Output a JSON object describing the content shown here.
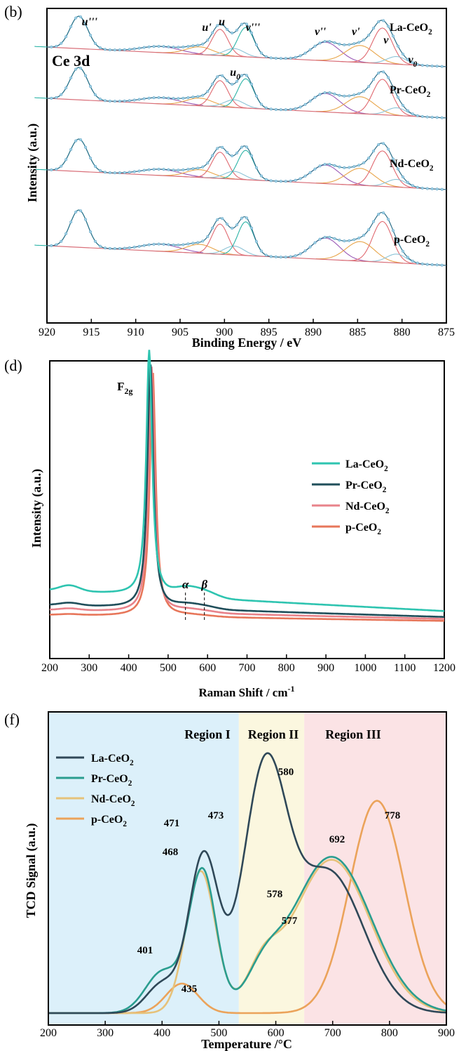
{
  "chart_data": [
    {
      "type": "line",
      "panel_label": "(b)",
      "spectrum_label": "Ce 3d",
      "xlabel": "Binding Energy / eV",
      "ylabel": "Intensity (a.u.)",
      "x_reversed": true,
      "xlim": [
        920,
        875
      ],
      "xticks": [
        "920",
        "915",
        "910",
        "905",
        "900",
        "895",
        "890",
        "885",
        "880",
        "875"
      ],
      "series": [
        {
          "name": "La-CeO2",
          "label_text": "La-CeO",
          "label_sub": "2",
          "offset": 3.0
        },
        {
          "name": "Pr-CeO2",
          "label_text": "Pr-CeO",
          "label_sub": "2",
          "offset": 2.0
        },
        {
          "name": "Nd-CeO2",
          "label_text": "Nd-CeO",
          "label_sub": "2",
          "offset": 1.0
        },
        {
          "name": "p-CeO2",
          "label_text": "p-CeO",
          "label_sub": "2",
          "offset": 0.0
        }
      ],
      "peaks": [
        {
          "x": 916.4,
          "h": 0.42,
          "w": 1.0
        },
        {
          "x": 907.2,
          "h": 0.08,
          "w": 2.2
        },
        {
          "x": 902.8,
          "h": 0.1,
          "w": 1.5
        },
        {
          "x": 900.5,
          "h": 0.34,
          "w": 0.9
        },
        {
          "x": 898.9,
          "h": 0.1,
          "w": 1.1
        },
        {
          "x": 897.6,
          "h": 0.38,
          "w": 0.9
        },
        {
          "x": 888.6,
          "h": 0.24,
          "w": 1.6
        },
        {
          "x": 884.7,
          "h": 0.22,
          "w": 1.6
        },
        {
          "x": 882.2,
          "h": 0.46,
          "w": 1.1
        },
        {
          "x": 880.6,
          "h": 0.1,
          "w": 1.1
        }
      ],
      "peak_labels": [
        {
          "x": 915.2,
          "text": "u'''"
        },
        {
          "x": 902.0,
          "text": "u'"
        },
        {
          "x": 900.3,
          "text": "u"
        },
        {
          "x": 898.8,
          "text": "u",
          "sub": "0"
        },
        {
          "x": 896.8,
          "text": "v'''"
        },
        {
          "x": 889.2,
          "text": "v''"
        },
        {
          "x": 885.2,
          "text": "v'"
        },
        {
          "x": 881.8,
          "text": "v"
        },
        {
          "x": 878.8,
          "text": "v",
          "sub": "0"
        }
      ],
      "component_colors": [
        "#2bb3a6",
        "#9b59b6",
        "#e8a54a",
        "#e0686f",
        "#8cc3d6"
      ]
    },
    {
      "type": "line",
      "panel_label": "(d)",
      "xlabel": "Raman Shift / cm-1",
      "xlabel_main": "Raman Shift / cm",
      "xlabel_sup": "-1",
      "ylabel": "Intensity (a.u.)",
      "xlim": [
        200,
        1200
      ],
      "xticks": [
        "200",
        "300",
        "400",
        "500",
        "600",
        "700",
        "800",
        "900",
        "1000",
        "1100",
        "1200"
      ],
      "peak_label": {
        "text": "F",
        "sub": "2g",
        "x": 456
      },
      "annotations": [
        {
          "text": "α",
          "x": 544
        },
        {
          "text": "β",
          "x": 592
        }
      ],
      "series": [
        {
          "name": "La-CeO2",
          "label_text": "La-CeO",
          "label_sub": "2",
          "color": "#2ec4b0",
          "peak_x": 452,
          "peak_h": 1.0,
          "baseline": 0.14,
          "shoulder": 0.13
        },
        {
          "name": "Pr-CeO2",
          "label_text": "Pr-CeO",
          "label_sub": "2",
          "color": "#1f4e5a",
          "peak_x": 455,
          "peak_h": 1.0,
          "baseline": 0.08,
          "shoulder": 0.06
        },
        {
          "name": "Nd-CeO2",
          "label_text": "Nd-CeO",
          "label_sub": "2",
          "color": "#e8828a",
          "peak_x": 458,
          "peak_h": 1.0,
          "baseline": 0.06,
          "shoulder": 0.04
        },
        {
          "name": "p-CeO2",
          "label_text": "p-CeO",
          "label_sub": "2",
          "color": "#e7765a",
          "peak_x": 461,
          "peak_h": 1.0,
          "baseline": 0.04,
          "shoulder": 0.02
        }
      ]
    },
    {
      "type": "line",
      "panel_label": "(f)",
      "xlabel": "Temperature /°C",
      "ylabel": "TCD Signal (a.u.)",
      "xlim": [
        200,
        900
      ],
      "xticks": [
        "200",
        "300",
        "400",
        "500",
        "600",
        "700",
        "800",
        "900"
      ],
      "regions": [
        {
          "label": "Region I",
          "from": 200,
          "to": 535,
          "color": "#dcf0fa"
        },
        {
          "label": "Region II",
          "from": 535,
          "to": 650,
          "color": "#fbf7df"
        },
        {
          "label": "Region III",
          "from": 650,
          "to": 900,
          "color": "#fbe3e5"
        }
      ],
      "series": [
        {
          "name": "La-CeO2",
          "label_text": "La-CeO",
          "label_sub": "2",
          "color": "#2f4858",
          "peaks": [
            {
              "x": 401,
              "h": 0.1,
              "w": 28
            },
            {
              "x": 473,
              "h": 0.53,
              "w": 26
            },
            {
              "x": 580,
              "h": 0.78,
              "w": 38
            },
            {
              "x": 692,
              "h": 0.48,
              "w": 62
            }
          ]
        },
        {
          "name": "Pr-CeO2",
          "label_text": "Pr-CeO",
          "label_sub": "2",
          "color": "#2a9d8f",
          "peaks": [
            {
              "x": 401,
              "h": 0.14,
              "w": 30
            },
            {
              "x": 471,
              "h": 0.48,
              "w": 24
            },
            {
              "x": 578,
              "h": 0.1,
              "w": 30
            },
            {
              "x": 698,
              "h": 0.53,
              "w": 70
            }
          ]
        },
        {
          "name": "Nd-CeO2",
          "label_text": "Nd-CeO",
          "label_sub": "2",
          "color": "#e6c27a",
          "peaks": [
            {
              "x": 468,
              "h": 0.48,
              "w": 26
            },
            {
              "x": 577,
              "h": 0.12,
              "w": 28
            },
            {
              "x": 698,
              "h": 0.52,
              "w": 68
            }
          ]
        },
        {
          "name": "p-CeO2",
          "label_text": "p-CeO",
          "label_sub": "2",
          "color": "#eba35a",
          "peaks": [
            {
              "x": 435,
              "h": 0.1,
              "w": 28
            },
            {
              "x": 778,
              "h": 0.72,
              "w": 48
            }
          ]
        }
      ],
      "peak_labels": [
        "401",
        "435",
        "468",
        "471",
        "473",
        "577",
        "578",
        "580",
        "692",
        "778"
      ]
    }
  ]
}
